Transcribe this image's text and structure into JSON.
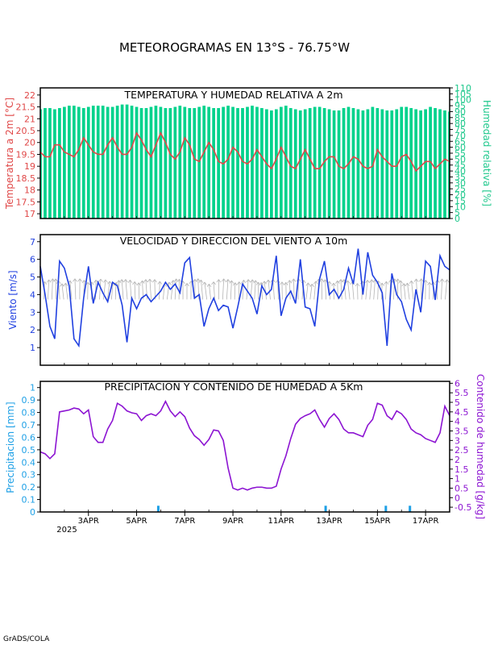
{
  "title": "METEOROGRAMAS EN 13°S - 76.75°W",
  "credit": "GrADS/COLA",
  "x_axis": {
    "tick_labels": [
      "3APR",
      "5APR",
      "7APR",
      "9APR",
      "11APR",
      "13APR",
      "15APR",
      "17APR"
    ],
    "year_label": "2025"
  },
  "colors": {
    "temperature": "#e04848",
    "humidity_bars": "#00d28c",
    "humidity_axis": "#1ec88c",
    "wind_speed": "#2040e0",
    "wind_arrows": "#b4b4b4",
    "precipitation": "#1ea0e6",
    "moisture": "#8c14d2",
    "black_axis": "#000000"
  },
  "chart_data": [
    {
      "type": "bar+line",
      "title": "TEMPERATURA Y HUMEDAD RELATIVA A 2m",
      "ylabel_left": "Temperatura a 2m [°C]",
      "ylabel_right": "Humedad relativa [%]",
      "ylim_left": [
        16.8,
        22.3
      ],
      "ylim_right": [
        0,
        110
      ],
      "yticks_left": [
        17,
        17.5,
        18,
        18.5,
        19,
        19.5,
        20,
        20.5,
        21,
        21.5,
        22
      ],
      "yticks_right": [
        0,
        5,
        10,
        15,
        20,
        25,
        30,
        35,
        40,
        45,
        50,
        55,
        60,
        65,
        70,
        75,
        80,
        85,
        90,
        95,
        100,
        105,
        110
      ],
      "xlim_days": [
        1.0,
        18.0
      ],
      "temperature": {
        "x": [
          1.0,
          1.2,
          1.4,
          1.6,
          1.8,
          2.0,
          2.2,
          2.4,
          2.6,
          2.8,
          3.0,
          3.2,
          3.4,
          3.6,
          3.8,
          4.0,
          4.2,
          4.4,
          4.6,
          4.8,
          5.0,
          5.2,
          5.4,
          5.6,
          5.8,
          6.0,
          6.2,
          6.4,
          6.6,
          6.8,
          7.0,
          7.2,
          7.4,
          7.6,
          7.8,
          8.0,
          8.2,
          8.4,
          8.6,
          8.8,
          9.0,
          9.2,
          9.4,
          9.6,
          9.8,
          10.0,
          10.2,
          10.4,
          10.6,
          10.8,
          11.0,
          11.2,
          11.4,
          11.6,
          11.8,
          12.0,
          12.2,
          12.4,
          12.6,
          12.8,
          13.0,
          13.2,
          13.4,
          13.6,
          13.8,
          14.0,
          14.2,
          14.4,
          14.6,
          14.8,
          15.0,
          15.2,
          15.4,
          15.6,
          15.8,
          16.0,
          16.2,
          16.4,
          16.6,
          16.8,
          17.0,
          17.2,
          17.4,
          17.6,
          17.8,
          18.0
        ],
        "values": [
          19.6,
          19.4,
          19.4,
          19.9,
          19.9,
          19.6,
          19.5,
          19.4,
          19.7,
          20.2,
          19.9,
          19.6,
          19.5,
          19.5,
          19.9,
          20.2,
          19.8,
          19.5,
          19.5,
          19.8,
          20.4,
          20.1,
          19.7,
          19.4,
          19.9,
          20.4,
          20.0,
          19.5,
          19.3,
          19.6,
          20.2,
          19.9,
          19.3,
          19.2,
          19.6,
          20.0,
          19.7,
          19.2,
          19.1,
          19.3,
          19.8,
          19.6,
          19.2,
          19.1,
          19.3,
          19.7,
          19.4,
          19.1,
          18.9,
          19.3,
          19.8,
          19.4,
          19.0,
          18.9,
          19.3,
          19.7,
          19.3,
          18.9,
          18.9,
          19.2,
          19.4,
          19.4,
          19.0,
          18.9,
          19.1,
          19.4,
          19.3,
          19.0,
          18.9,
          19.0,
          19.7,
          19.4,
          19.2,
          19.0,
          19.0,
          19.4,
          19.5,
          19.2,
          18.8,
          19.0,
          19.2,
          19.2,
          18.9,
          19.1,
          19.3,
          19.2
        ]
      },
      "humidity": {
        "x": [
          1.0,
          1.2,
          1.4,
          1.6,
          1.8,
          2.0,
          2.2,
          2.4,
          2.6,
          2.8,
          3.0,
          3.2,
          3.4,
          3.6,
          3.8,
          4.0,
          4.2,
          4.4,
          4.6,
          4.8,
          5.0,
          5.2,
          5.4,
          5.6,
          5.8,
          6.0,
          6.2,
          6.4,
          6.6,
          6.8,
          7.0,
          7.2,
          7.4,
          7.6,
          7.8,
          8.0,
          8.2,
          8.4,
          8.6,
          8.8,
          9.0,
          9.2,
          9.4,
          9.6,
          9.8,
          10.0,
          10.2,
          10.4,
          10.6,
          10.8,
          11.0,
          11.2,
          11.4,
          11.6,
          11.8,
          12.0,
          12.2,
          12.4,
          12.6,
          12.8,
          13.0,
          13.2,
          13.4,
          13.6,
          13.8,
          14.0,
          14.2,
          14.4,
          14.6,
          14.8,
          15.0,
          15.2,
          15.4,
          15.6,
          15.8,
          16.0,
          16.2,
          16.4,
          16.6,
          16.8,
          17.0,
          17.2,
          17.4,
          17.6,
          17.8,
          18.0
        ],
        "values": [
          92,
          93,
          93,
          92,
          93,
          94,
          95,
          95,
          94,
          93,
          94,
          95,
          95,
          95,
          94,
          94,
          95,
          96,
          96,
          95,
          94,
          93,
          93,
          94,
          95,
          94,
          93,
          93,
          94,
          95,
          94,
          93,
          93,
          94,
          95,
          94,
          93,
          93,
          94,
          95,
          94,
          93,
          93,
          94,
          95,
          94,
          93,
          92,
          91,
          92,
          94,
          95,
          93,
          92,
          91,
          92,
          93,
          94,
          94,
          93,
          92,
          91,
          91,
          93,
          94,
          93,
          92,
          91,
          92,
          94,
          93,
          92,
          91,
          91,
          92,
          94,
          94,
          93,
          92,
          91,
          92,
          94,
          93,
          92,
          91,
          90
        ]
      }
    },
    {
      "type": "line",
      "title": "VELOCIDAD Y DIRECCION DEL VIENTO A 10m",
      "ylabel": "Viento [m/s]",
      "ylim": [
        0,
        7.4
      ],
      "yticks": [
        1,
        2,
        3,
        4,
        5,
        6,
        7
      ],
      "xlim_days": [
        1.0,
        18.0
      ],
      "wind_speed": {
        "x": [
          1.0,
          1.2,
          1.4,
          1.6,
          1.8,
          2.0,
          2.2,
          2.4,
          2.6,
          2.8,
          3.0,
          3.2,
          3.4,
          3.6,
          3.8,
          4.0,
          4.2,
          4.4,
          4.6,
          4.8,
          5.0,
          5.2,
          5.4,
          5.6,
          5.8,
          6.0,
          6.2,
          6.4,
          6.6,
          6.8,
          7.0,
          7.2,
          7.4,
          7.6,
          7.8,
          8.0,
          8.2,
          8.4,
          8.6,
          8.8,
          9.0,
          9.2,
          9.4,
          9.6,
          9.8,
          10.0,
          10.2,
          10.4,
          10.6,
          10.8,
          11.0,
          11.2,
          11.4,
          11.6,
          11.8,
          12.0,
          12.2,
          12.4,
          12.6,
          12.8,
          13.0,
          13.2,
          13.4,
          13.6,
          13.8,
          14.0,
          14.2,
          14.4,
          14.6,
          14.8,
          15.0,
          15.2,
          15.4,
          15.6,
          15.8,
          16.0,
          16.2,
          16.4,
          16.6,
          16.8,
          17.0,
          17.2,
          17.4,
          17.6,
          17.8,
          18.0
        ],
        "values": [
          5.6,
          4.0,
          2.2,
          1.5,
          5.9,
          5.5,
          4.5,
          1.5,
          1.1,
          3.8,
          5.6,
          3.5,
          4.7,
          4.1,
          3.6,
          4.7,
          4.5,
          3.4,
          1.3,
          3.8,
          3.2,
          3.8,
          4.0,
          3.6,
          3.9,
          4.2,
          4.7,
          4.3,
          4.6,
          4.1,
          5.8,
          6.1,
          3.8,
          4.0,
          2.2,
          3.2,
          3.8,
          3.1,
          3.4,
          3.3,
          2.1,
          3.3,
          4.6,
          4.2,
          3.8,
          2.9,
          4.5,
          4.0,
          4.3,
          6.2,
          2.8,
          3.8,
          4.2,
          3.5,
          6.0,
          3.3,
          3.2,
          2.2,
          4.9,
          5.9,
          4.0,
          4.3,
          3.8,
          4.3,
          5.5,
          4.6,
          6.6,
          4.0,
          6.4,
          5.1,
          4.7,
          4.1,
          1.1,
          5.2,
          4.0,
          3.6,
          2.6,
          2.0,
          4.3,
          3.0,
          5.9,
          5.6,
          3.7,
          6.2,
          5.6,
          5.4
        ]
      },
      "wind_arrows": {
        "note": "",
        "direction_deg": []
      }
    },
    {
      "type": "bar+line",
      "title": "PRECIPITACION Y CONTENIDO DE HUMEDAD A 5Km",
      "ylabel_left": "Precipitacion [mm]",
      "ylabel_right": "Contenido de humedad [g/kg]",
      "ylim_left": [
        0,
        1.05
      ],
      "ylim_right": [
        -0.75,
        6.1
      ],
      "yticks_left": [
        0,
        0.1,
        0.2,
        0.3,
        0.4,
        0.5,
        0.6,
        0.7,
        0.8,
        0.9,
        1
      ],
      "yticks_right": [
        -0.5,
        0,
        0.5,
        1,
        1.5,
        2,
        2.5,
        3,
        3.5,
        4,
        4.5,
        5,
        5.5,
        6
      ],
      "xlim_days": [
        1.0,
        18.0
      ],
      "precipitation": {
        "x": [
          5.9,
          12.85,
          15.35,
          16.35
        ],
        "values": [
          0.05,
          0.05,
          0.05,
          0.05
        ]
      },
      "moisture": {
        "x": [
          1.0,
          1.2,
          1.4,
          1.6,
          1.8,
          2.0,
          2.2,
          2.4,
          2.6,
          2.8,
          3.0,
          3.2,
          3.4,
          3.6,
          3.8,
          4.0,
          4.2,
          4.4,
          4.6,
          4.8,
          5.0,
          5.2,
          5.4,
          5.6,
          5.8,
          6.0,
          6.2,
          6.4,
          6.6,
          6.8,
          7.0,
          7.2,
          7.4,
          7.6,
          7.8,
          8.0,
          8.2,
          8.4,
          8.6,
          8.8,
          9.0,
          9.2,
          9.4,
          9.6,
          9.8,
          10.0,
          10.2,
          10.4,
          10.6,
          10.8,
          11.0,
          11.2,
          11.4,
          11.6,
          11.8,
          12.0,
          12.2,
          12.4,
          12.6,
          12.8,
          13.0,
          13.2,
          13.4,
          13.6,
          13.8,
          14.0,
          14.2,
          14.4,
          14.6,
          14.8,
          15.0,
          15.2,
          15.4,
          15.6,
          15.8,
          16.0,
          16.2,
          16.4,
          16.6,
          16.8,
          17.0,
          17.2,
          17.4,
          17.6,
          17.8,
          18.0
        ],
        "values": [
          2.4,
          2.3,
          2.05,
          2.3,
          4.5,
          4.55,
          4.6,
          4.7,
          4.65,
          4.4,
          4.6,
          3.2,
          2.9,
          2.9,
          3.6,
          4.05,
          4.95,
          4.8,
          4.55,
          4.45,
          4.4,
          4.05,
          4.3,
          4.4,
          4.3,
          4.55,
          5.05,
          4.55,
          4.25,
          4.5,
          4.25,
          3.65,
          3.25,
          3.05,
          2.75,
          3.05,
          3.55,
          3.5,
          3.0,
          1.55,
          0.5,
          0.4,
          0.5,
          0.4,
          0.5,
          0.55,
          0.55,
          0.5,
          0.5,
          0.6,
          1.5,
          2.2,
          3.1,
          3.85,
          4.15,
          4.3,
          4.4,
          4.6,
          4.1,
          3.7,
          4.15,
          4.4,
          4.1,
          3.6,
          3.4,
          3.4,
          3.3,
          3.2,
          3.8,
          4.1,
          4.95,
          4.85,
          4.3,
          4.1,
          4.55,
          4.4,
          4.1,
          3.6,
          3.4,
          3.3,
          3.1,
          3.0,
          2.9,
          3.4,
          4.8,
          4.3
        ]
      }
    }
  ]
}
